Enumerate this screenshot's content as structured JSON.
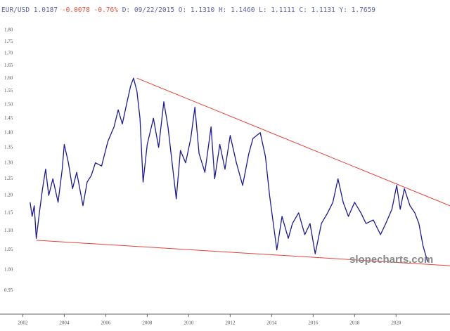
{
  "chart_data": {
    "type": "line",
    "header": {
      "symbol": "EUR/USD",
      "last": "1.0187",
      "change": "-0.0078",
      "change_pct": "-0.76%",
      "details": "D: 09/22/2015 O: 1.1310 H: 1.1460 L: 1.1111 C: 1.1131 Y: 1.7659"
    },
    "watermark": "slopecharts.com",
    "color": "#1c1c8e",
    "log_y": true,
    "xlim": [
      2000.9,
      2022.6
    ],
    "xticks": [
      2002,
      2004,
      2006,
      2008,
      2010,
      2012,
      2014,
      2016,
      2018,
      2020
    ],
    "ylim": [
      0.9,
      1.85
    ],
    "yticks": [
      0.95,
      {
        "value": 1.0,
        "label": "1.00"
      },
      1.05,
      {
        "value": 1.1,
        "label": "1.10"
      },
      1.15,
      {
        "value": 1.2,
        "label": "1.20"
      },
      1.25,
      {
        "value": 1.3,
        "label": "1.30"
      },
      1.35,
      {
        "value": 1.4,
        "label": "1.40"
      },
      1.45,
      {
        "value": 1.5,
        "label": "1.50"
      },
      1.55,
      {
        "value": 1.6,
        "label": "1.60"
      },
      1.65,
      {
        "value": 1.7,
        "label": "1.70"
      },
      1.75,
      {
        "value": 1.8,
        "label": "1.80"
      }
    ],
    "x": [
      2002.35,
      2002.45,
      2002.55,
      2002.65,
      2002.8,
      2002.95,
      2003.1,
      2003.25,
      2003.45,
      2003.7,
      2003.9,
      2004.0,
      2004.2,
      2004.4,
      2004.6,
      2004.9,
      2005.1,
      2005.3,
      2005.5,
      2005.8,
      2006.1,
      2006.4,
      2006.6,
      2006.8,
      2007.0,
      2007.2,
      2007.34,
      2007.5,
      2007.65,
      2007.8,
      2008.0,
      2008.3,
      2008.55,
      2008.8,
      2009.0,
      2009.2,
      2009.4,
      2009.6,
      2009.85,
      2010.1,
      2010.3,
      2010.5,
      2010.78,
      2011.08,
      2011.25,
      2011.5,
      2011.75,
      2012.0,
      2012.3,
      2012.6,
      2012.9,
      2013.1,
      2013.45,
      2013.7,
      2013.9,
      2014.25,
      2014.5,
      2014.8,
      2015.0,
      2015.3,
      2015.6,
      2015.85,
      2016.1,
      2016.4,
      2016.7,
      2016.95,
      2017.2,
      2017.45,
      2017.7,
      2018.0,
      2018.3,
      2018.55,
      2018.9,
      2019.25,
      2019.5,
      2019.8,
      2020.03,
      2020.2,
      2020.4,
      2020.67,
      2020.9,
      2021.1,
      2021.3,
      2021.52
    ],
    "values": [
      1.18,
      1.14,
      1.17,
      1.08,
      1.15,
      1.22,
      1.28,
      1.2,
      1.25,
      1.18,
      1.28,
      1.36,
      1.3,
      1.22,
      1.27,
      1.17,
      1.24,
      1.26,
      1.3,
      1.29,
      1.37,
      1.42,
      1.48,
      1.43,
      1.5,
      1.57,
      1.6,
      1.55,
      1.45,
      1.24,
      1.36,
      1.45,
      1.35,
      1.51,
      1.42,
      1.3,
      1.19,
      1.34,
      1.3,
      1.38,
      1.49,
      1.33,
      1.27,
      1.42,
      1.25,
      1.36,
      1.28,
      1.39,
      1.3,
      1.23,
      1.33,
      1.38,
      1.4,
      1.32,
      1.2,
      1.05,
      1.14,
      1.08,
      1.12,
      1.15,
      1.09,
      1.12,
      1.04,
      1.12,
      1.15,
      1.18,
      1.25,
      1.18,
      1.14,
      1.18,
      1.15,
      1.12,
      1.13,
      1.09,
      1.12,
      1.16,
      1.23,
      1.16,
      1.22,
      1.17,
      1.15,
      1.12,
      1.06,
      1.02
    ],
    "trendlines": [
      {
        "color": "#e8403a",
        "x": [
          2007.5,
          2022.6
        ],
        "values": [
          1.6,
          1.17
        ]
      },
      {
        "color": "#e8403a",
        "x": [
          2002.65,
          2022.6
        ],
        "values": [
          1.075,
          1.01
        ]
      }
    ]
  }
}
